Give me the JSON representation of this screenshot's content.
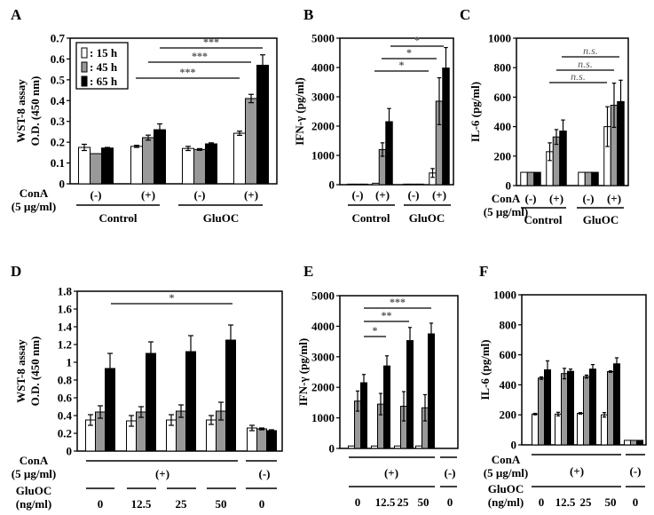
{
  "chart_data": [
    {
      "panel": "A",
      "type": "bar",
      "ylabel": [
        "WST-8 assay",
        "O.D. (450 nm)"
      ],
      "ylim": [
        0,
        0.7
      ],
      "yticks": [
        "0",
        "0.1",
        "0.2",
        "0.3",
        "0.4",
        "0.5",
        "0.6",
        "0.7"
      ],
      "legend": {
        "placement": "top-left",
        "entries": [
          ": 15 h",
          ": 45 h",
          ": 65 h"
        ]
      },
      "series": [
        {
          "name": "15 h",
          "color": "#ffffff",
          "values": [
            0.175,
            0.18,
            0.17,
            0.243
          ],
          "errors": [
            0.015,
            0.005,
            0.01,
            0.01
          ]
        },
        {
          "name": "45 h",
          "color": "#999999",
          "values": [
            0.145,
            0.222,
            0.165,
            0.41
          ],
          "errors": [
            0,
            0.012,
            0.004,
            0.02
          ]
        },
        {
          "name": "65 h",
          "color": "#000000",
          "values": [
            0.172,
            0.26,
            0.192,
            0.57
          ],
          "errors": [
            0.003,
            0.028,
            0.005,
            0.05
          ]
        }
      ],
      "x_annotations": {
        "row_label": [
          "ConA",
          "(5 µg/ml)"
        ],
        "conA": [
          "(-)",
          "(+)",
          "(-)",
          "(+)"
        ],
        "groups": [
          "Control",
          "GluOC"
        ]
      },
      "significance": [
        "***",
        "***",
        "***"
      ]
    },
    {
      "panel": "B",
      "type": "bar",
      "ylabel": [
        "IFN-γ (pg/ml)"
      ],
      "ylim": [
        0,
        5000
      ],
      "yticks": [
        "0",
        "1000",
        "2000",
        "3000",
        "4000",
        "5000"
      ],
      "series": [
        {
          "name": "15 h",
          "color": "#ffffff",
          "values": [
            20,
            50,
            20,
            400
          ],
          "errors": [
            0,
            0,
            0,
            150
          ]
        },
        {
          "name": "45 h",
          "color": "#999999",
          "values": [
            20,
            1200,
            20,
            2850
          ],
          "errors": [
            0,
            230,
            0,
            800
          ]
        },
        {
          "name": "65 h",
          "color": "#000000",
          "values": [
            20,
            2150,
            20,
            3980
          ],
          "errors": [
            0,
            450,
            0,
            700
          ]
        }
      ],
      "x_annotations": {
        "conA": [
          "(-)",
          "(+)",
          "(-)",
          "(+)"
        ],
        "groups": [
          "Control",
          "GluOC"
        ]
      },
      "significance": [
        "*",
        "*",
        "*"
      ]
    },
    {
      "panel": "C",
      "type": "bar",
      "ylabel": [
        "IL-6 (pg/ml)"
      ],
      "ylim": [
        0,
        1000
      ],
      "yticks": [
        "0",
        "200",
        "400",
        "600",
        "800",
        "1000"
      ],
      "series": [
        {
          "name": "15 h",
          "color": "#ffffff",
          "values": [
            90,
            230,
            90,
            400
          ],
          "errors": [
            0,
            60,
            0,
            135
          ]
        },
        {
          "name": "45 h",
          "color": "#999999",
          "values": [
            90,
            330,
            90,
            545
          ],
          "errors": [
            0,
            50,
            0,
            150
          ]
        },
        {
          "name": "65 h",
          "color": "#000000",
          "values": [
            90,
            370,
            90,
            570
          ],
          "errors": [
            0,
            75,
            0,
            145
          ]
        }
      ],
      "x_annotations": {
        "row_label": [
          "ConA",
          "(5 µg/ml)"
        ],
        "conA": [
          "(-)",
          "(+)",
          "(-)",
          "(+)"
        ],
        "groups": [
          "Control",
          "GluOC"
        ]
      },
      "significance": [
        "n.s.",
        "n.s.",
        "n.s."
      ]
    },
    {
      "panel": "D",
      "type": "bar",
      "ylabel": [
        "WST-8 assay",
        "O.D. (450 nm)"
      ],
      "ylim": [
        0,
        1.8
      ],
      "yticks": [
        "0",
        "0.2",
        "0.4",
        "0.6",
        "0.8",
        "1",
        "1.2",
        "1.4",
        "1.6",
        "1.8"
      ],
      "series": [
        {
          "name": "15 h",
          "color": "#ffffff",
          "values": [
            0.35,
            0.34,
            0.35,
            0.35,
            0.26
          ],
          "errors": [
            0.06,
            0.06,
            0.06,
            0.05,
            0.03
          ]
        },
        {
          "name": "45 h",
          "color": "#999999",
          "values": [
            0.44,
            0.44,
            0.45,
            0.45,
            0.25
          ],
          "errors": [
            0.07,
            0.06,
            0.07,
            0.1,
            0.01
          ]
        },
        {
          "name": "65 h",
          "color": "#000000",
          "values": [
            0.93,
            1.1,
            1.12,
            1.25,
            0.23
          ],
          "errors": [
            0.17,
            0.13,
            0.18,
            0.17,
            0.01
          ]
        }
      ],
      "x_annotations": {
        "row_label": [
          "ConA",
          "(5 µg/ml)"
        ],
        "row_label2": [
          "GluOC",
          "(ng/ml)"
        ],
        "conA": [
          "(+)",
          "(-)"
        ],
        "gluoc": [
          "0",
          "12.5",
          "25",
          "50",
          "0"
        ]
      },
      "significance": [
        "*"
      ]
    },
    {
      "panel": "E",
      "type": "bar",
      "ylabel": [
        "IFN-γ (pg/ml)"
      ],
      "ylim": [
        0,
        5000
      ],
      "yticks": [
        "0",
        "1000",
        "2000",
        "3000",
        "4000",
        "5000"
      ],
      "series": [
        {
          "name": "15 h",
          "color": "#ffffff",
          "values": [
            80,
            80,
            80,
            80,
            0
          ],
          "errors": [
            0,
            0,
            0,
            0,
            0
          ]
        },
        {
          "name": "45 h",
          "color": "#999999",
          "values": [
            1550,
            1450,
            1380,
            1330,
            0
          ],
          "errors": [
            330,
            350,
            480,
            430,
            0
          ]
        },
        {
          "name": "65 h",
          "color": "#000000",
          "values": [
            2150,
            2700,
            3530,
            3750,
            0
          ],
          "errors": [
            270,
            330,
            430,
            350,
            0
          ]
        }
      ],
      "x_annotations": {
        "conA": [
          "(+)",
          "(-)"
        ],
        "gluoc": [
          "0",
          "12.5",
          "25",
          "50",
          "0"
        ]
      },
      "significance": [
        "*",
        "**",
        "***"
      ]
    },
    {
      "panel": "F",
      "type": "bar",
      "ylabel": [
        "IL-6 (pg/ml)"
      ],
      "ylim": [
        0,
        1000
      ],
      "yticks": [
        "0",
        "200",
        "400",
        "600",
        "800",
        "1000"
      ],
      "series": [
        {
          "name": "15 h",
          "color": "#ffffff",
          "values": [
            205,
            205,
            210,
            200,
            30
          ],
          "errors": [
            5,
            12,
            5,
            15,
            0
          ]
        },
        {
          "name": "45 h",
          "color": "#999999",
          "values": [
            445,
            475,
            455,
            488,
            30
          ],
          "errors": [
            8,
            35,
            10,
            5,
            0
          ]
        },
        {
          "name": "65 h",
          "color": "#000000",
          "values": [
            500,
            490,
            505,
            540,
            30
          ],
          "errors": [
            60,
            15,
            30,
            40,
            0
          ]
        }
      ],
      "x_annotations": {
        "row_label": [
          "ConA",
          "(5 µg/ml)"
        ],
        "row_label2": [
          "GluOC",
          "(ng/ml)"
        ],
        "conA": [
          "(+)",
          "(-)"
        ],
        "gluoc": [
          "0",
          "12.5",
          "25",
          "50",
          "0"
        ]
      },
      "significance": []
    }
  ]
}
